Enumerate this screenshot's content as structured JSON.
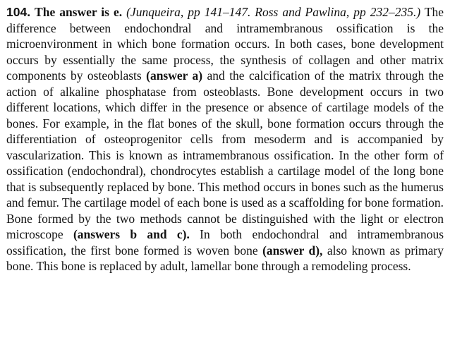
{
  "answer": {
    "number": "104.",
    "heading": "The answer is e.",
    "citation": "(Junqueira, pp 141–147. Ross and Pawlina, pp 232–235.)",
    "segments": [
      "The difference between endochondral and intramembranous ossification is the microenvironment in which bone formation occurs. In both cases, bone development occurs by essentially the same process, the synthesis of collagen and other matrix components by osteoblasts ",
      " and the calcification of the matrix through the action of alkaline phosphatase from osteoblasts. Bone development occurs in two different locations, which differ in the presence or absence of cartilage models of the bones. For example, in the flat bones of the skull, bone formation occurs through the differentiation of osteoprogenitor cells from mesoderm and is accompanied by vascularization. This is known as intramembranous ossification. In the other form of ossification (endochondral), chondrocytes establish a cartilage model of the long bone that is subsequently replaced by bone. This method occurs in bones such as the humerus and femur. The cartilage model of each bone is used as a scaffolding for bone formation. Bone formed by the two methods cannot be distinguished with the light or electron microscope ",
      " In both endochondral and intramembranous ossification, the first bone formed is woven bone ",
      " also known as primary bone. This bone is replaced by adult, lamellar bone through a remodeling process."
    ],
    "refs": {
      "a": "(answer a)",
      "bc": "(answers b and c).",
      "d": "(answer d),"
    }
  }
}
